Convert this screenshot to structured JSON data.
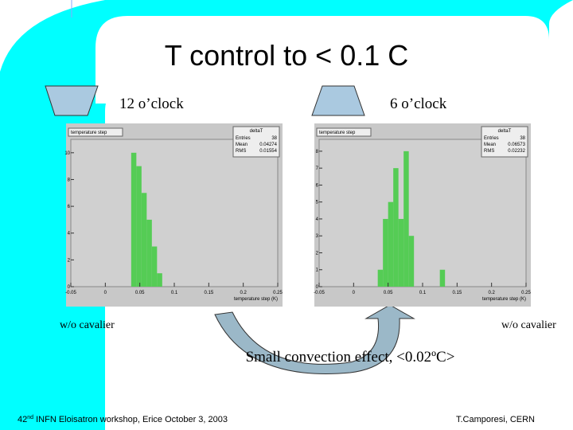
{
  "slide": {
    "title": "T control to < 0.1 C",
    "left_label": "12  o’clock",
    "right_label": "6  o’clock",
    "left_note": "w/o cavalier",
    "right_note": "w/o cavalier",
    "caption": "Small convection effect, <0.02ºC>",
    "footer_left": {
      "number": "42",
      "suffix": "nd",
      "text": " INFN Eloisatron workshop, Erice October 3, 2003"
    },
    "footer_right": "T.Camporesi, CERN"
  },
  "chart_data": [
    {
      "type": "histogram",
      "title": "temperature step",
      "x_label": "temperature step (K)",
      "color": "#55cc55",
      "bins": [
        0.0375,
        0.045,
        0.0525,
        0.06,
        0.0675,
        0.075,
        0.0825
      ],
      "counts": [
        10,
        9,
        7,
        5,
        3,
        1
      ],
      "xlim": [
        -0.05,
        0.25
      ],
      "xticks": [
        -0.05,
        0,
        0.05,
        0.1,
        0.15,
        0.2,
        0.25
      ],
      "ylim": [
        0,
        11
      ],
      "yticks": [
        0,
        2,
        4,
        6,
        8,
        10
      ],
      "stats": {
        "name": "deltaT",
        "rows": [
          [
            "Entries",
            38
          ],
          [
            "Mean",
            0.04274
          ],
          [
            "RMS",
            0.01554
          ]
        ]
      }
    },
    {
      "type": "histogram",
      "title": "temperature step",
      "x_label": "temperature step (K)",
      "color": "#55cc55",
      "bins": [
        0.035,
        0.0425,
        0.05,
        0.0575,
        0.065,
        0.0725,
        0.08,
        0.0875,
        0.095,
        0.1025,
        0.11,
        0.1175,
        0.125,
        0.1325
      ],
      "counts": [
        1,
        4,
        5,
        7,
        4,
        8,
        3,
        0,
        0,
        0,
        0,
        0,
        1
      ],
      "xlim": [
        -0.05,
        0.25
      ],
      "xticks": [
        -0.05,
        0,
        0.05,
        0.1,
        0.15,
        0.2,
        0.25
      ],
      "ylim": [
        0,
        8.7
      ],
      "yticks": [
        0,
        1,
        2,
        3,
        4,
        5,
        6,
        7,
        8
      ],
      "stats": {
        "name": "deltaT",
        "rows": [
          [
            "Entries",
            38
          ],
          [
            "Mean",
            0.06573
          ],
          [
            "RMS",
            0.02232
          ]
        ]
      }
    }
  ]
}
